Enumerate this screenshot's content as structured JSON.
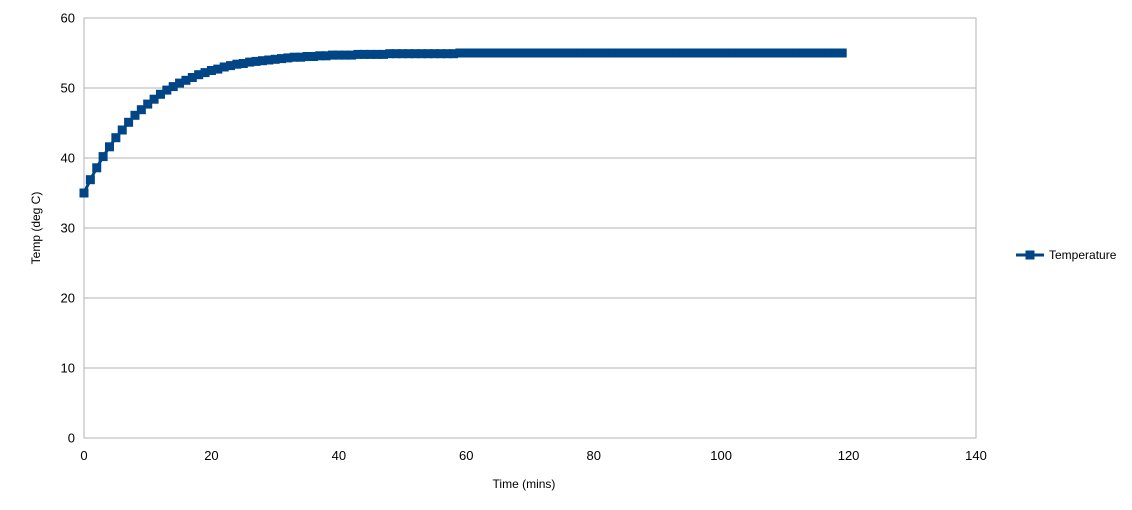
{
  "chart_data": {
    "type": "line",
    "title": "",
    "xlabel": "Time (mins)",
    "ylabel": "Temp (deg C)",
    "xlim": [
      0,
      140
    ],
    "ylim": [
      0,
      60
    ],
    "xticks": [
      0,
      20,
      40,
      60,
      80,
      100,
      120,
      140
    ],
    "yticks": [
      0,
      10,
      20,
      30,
      40,
      50,
      60
    ],
    "grid": "horizontal",
    "legend": "right",
    "marker": "square",
    "series_color": "#004586",
    "series": [
      {
        "name": "Temperature",
        "x": [
          0,
          1,
          2,
          3,
          4,
          5,
          6,
          7,
          8,
          9,
          10,
          11,
          12,
          13,
          14,
          15,
          16,
          17,
          18,
          19,
          20,
          21,
          22,
          23,
          24,
          25,
          26,
          27,
          28,
          29,
          30,
          31,
          32,
          33,
          34,
          35,
          36,
          37,
          38,
          39,
          40,
          41,
          42,
          43,
          44,
          45,
          46,
          47,
          48,
          49,
          50,
          51,
          52,
          53,
          54,
          55,
          56,
          57,
          58,
          59,
          60,
          61,
          62,
          63,
          64,
          65,
          66,
          67,
          68,
          69,
          70,
          71,
          72,
          73,
          74,
          75,
          76,
          77,
          78,
          79,
          80,
          81,
          82,
          83,
          84,
          85,
          86,
          87,
          88,
          89,
          90,
          91,
          92,
          93,
          94,
          95,
          96,
          97,
          98,
          99,
          100,
          101,
          102,
          103,
          104,
          105,
          106,
          107,
          108,
          109,
          110,
          111,
          112,
          113,
          114,
          115,
          116,
          117,
          118,
          119
        ],
        "values": [
          35.0,
          36.9,
          38.6,
          40.2,
          41.6,
          42.9,
          44.0,
          45.1,
          46.1,
          46.9,
          47.7,
          48.4,
          49.1,
          49.7,
          50.2,
          50.7,
          51.1,
          51.5,
          51.9,
          52.2,
          52.5,
          52.7,
          53.0,
          53.2,
          53.4,
          53.5,
          53.7,
          53.8,
          53.9,
          54.0,
          54.1,
          54.2,
          54.3,
          54.4,
          54.4,
          54.5,
          54.5,
          54.6,
          54.6,
          54.7,
          54.7,
          54.7,
          54.7,
          54.8,
          54.8,
          54.8,
          54.8,
          54.8,
          54.9,
          54.9,
          54.9,
          54.9,
          54.9,
          54.9,
          54.9,
          54.9,
          54.9,
          54.9,
          54.9,
          55.0,
          55.0,
          55.0,
          55.0,
          55.0,
          55.0,
          55.0,
          55.0,
          55.0,
          55.0,
          55.0,
          55.0,
          55.0,
          55.0,
          55.0,
          55.0,
          55.0,
          55.0,
          55.0,
          55.0,
          55.0,
          55.0,
          55.0,
          55.0,
          55.0,
          55.0,
          55.0,
          55.0,
          55.0,
          55.0,
          55.0,
          55.0,
          55.0,
          55.0,
          55.0,
          55.0,
          55.0,
          55.0,
          55.0,
          55.0,
          55.0,
          55.0,
          55.0,
          55.0,
          55.0,
          55.0,
          55.0,
          55.0,
          55.0,
          55.0,
          55.0,
          55.0,
          55.0,
          55.0,
          55.0,
          55.0,
          55.0,
          55.0,
          55.0,
          55.0,
          55.0
        ]
      }
    ]
  }
}
